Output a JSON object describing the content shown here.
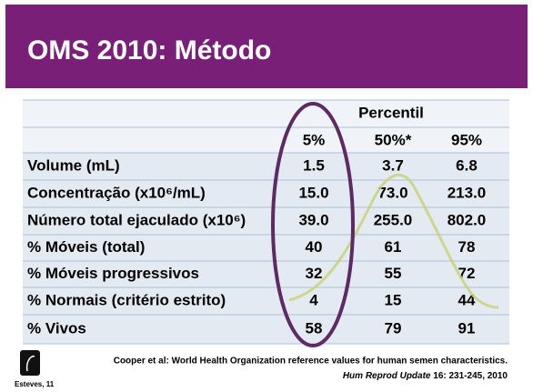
{
  "header": {
    "title": "OMS 2010: Método"
  },
  "table": {
    "group_header": "Percentil",
    "columns": [
      "5%",
      "50%*",
      "95%"
    ],
    "rows": [
      [
        "Volume (mL)",
        "1.5",
        "3.7",
        "6.8"
      ],
      [
        "Concentração (x10⁶/mL)",
        "15.0",
        "73.0",
        "213.0"
      ],
      [
        "Número total ejaculado (x10⁶)",
        "39.0",
        "255.0",
        "802.0"
      ],
      [
        "% Móveis (total)",
        "40",
        "61",
        "78"
      ],
      [
        "% Móveis progressivos",
        "32",
        "55",
        "72"
      ],
      [
        "% Normais (critério estrito)",
        "4",
        "15",
        "44"
      ],
      [
        "% Vivos",
        "58",
        "79",
        "91"
      ]
    ]
  },
  "footer": {
    "citation": "Cooper et al: World Health Organization reference values for human semen characteristics.",
    "journal": "Hum Reprod Update",
    "reference": " 16: 231-245, 2010",
    "logo": "Esteves, 11"
  }
}
